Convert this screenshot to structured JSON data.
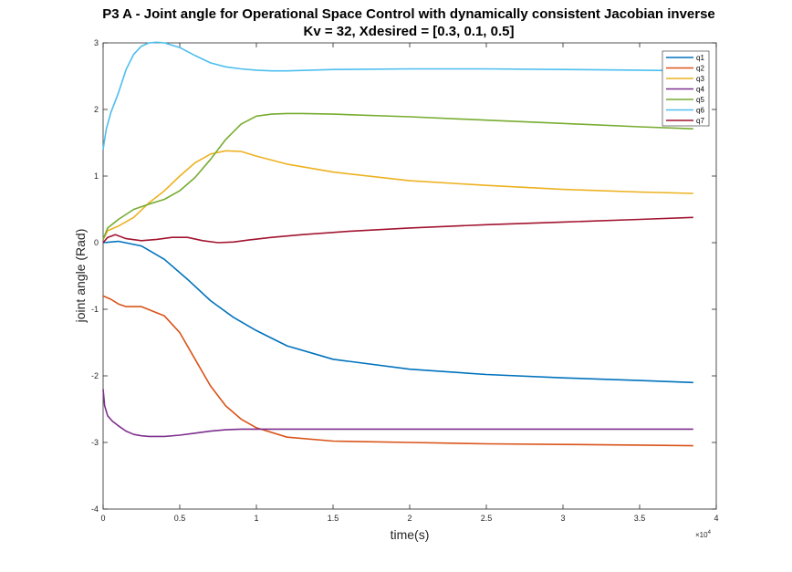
{
  "chart_data": {
    "type": "line",
    "title": "P3 A - Joint angle for Operational Space Control with dynamically consistent Jacobian inverse",
    "subtitle": "Kv = 32, Xdesired = [0.3, 0.1, 0.5]",
    "xlabel": "time(s)",
    "ylabel": "joint angle (Rad)",
    "xlim": [
      0,
      40000
    ],
    "ylim": [
      -4,
      3
    ],
    "x_multiplier_label": "×10",
    "x_multiplier_exp": "4",
    "xticks": [
      0,
      5000,
      10000,
      15000,
      20000,
      25000,
      30000,
      35000,
      40000
    ],
    "xtick_labels": [
      "0",
      "0.5",
      "1",
      "1.5",
      "2",
      "2.5",
      "3",
      "3.5",
      "4"
    ],
    "yticks": [
      -4,
      -3,
      -2,
      -1,
      0,
      1,
      2,
      3
    ],
    "ytick_labels": [
      "-4",
      "-3",
      "-2",
      "-1",
      "0",
      "1",
      "2",
      "3"
    ],
    "grid": false,
    "legend_position": "top-right",
    "colors": [
      "#0072BD",
      "#D95319",
      "#EDB120",
      "#7E2F8E",
      "#77AC30",
      "#4DBEEE",
      "#A2142F"
    ],
    "series": [
      {
        "name": "q1",
        "x": [
          0,
          1000,
          2500,
          4000,
          5500,
          7000,
          8500,
          10000,
          12000,
          15000,
          20000,
          25000,
          30000,
          35000,
          38500
        ],
        "y": [
          0.0,
          0.02,
          -0.05,
          -0.25,
          -0.55,
          -0.87,
          -1.12,
          -1.32,
          -1.55,
          -1.75,
          -1.9,
          -1.98,
          -2.03,
          -2.07,
          -2.1
        ]
      },
      {
        "name": "q2",
        "x": [
          0,
          500,
          1000,
          1500,
          2500,
          4000,
          5000,
          6000,
          7000,
          8000,
          9000,
          10000,
          12000,
          15000,
          20000,
          25000,
          30000,
          35000,
          38500
        ],
        "y": [
          -0.8,
          -0.85,
          -0.92,
          -0.96,
          -0.96,
          -1.1,
          -1.35,
          -1.75,
          -2.15,
          -2.45,
          -2.65,
          -2.78,
          -2.92,
          -2.98,
          -3.0,
          -3.02,
          -3.03,
          -3.04,
          -3.05
        ]
      },
      {
        "name": "q3",
        "x": [
          0,
          300,
          1000,
          2000,
          3000,
          4000,
          5000,
          6000,
          7000,
          8000,
          9000,
          10000,
          12000,
          15000,
          20000,
          25000,
          30000,
          35000,
          38500
        ],
        "y": [
          0.05,
          0.18,
          0.25,
          0.38,
          0.6,
          0.78,
          1.0,
          1.2,
          1.33,
          1.38,
          1.37,
          1.3,
          1.18,
          1.06,
          0.93,
          0.86,
          0.8,
          0.76,
          0.74
        ]
      },
      {
        "name": "q4",
        "x": [
          0,
          100,
          300,
          600,
          1000,
          1500,
          2000,
          2500,
          3000,
          4000,
          5000,
          6000,
          7000,
          8000,
          9000,
          10000,
          12000,
          15000,
          20000,
          25000,
          30000,
          35000,
          38500
        ],
        "y": [
          -2.2,
          -2.45,
          -2.6,
          -2.68,
          -2.75,
          -2.83,
          -2.88,
          -2.9,
          -2.91,
          -2.91,
          -2.89,
          -2.86,
          -2.83,
          -2.81,
          -2.8,
          -2.8,
          -2.8,
          -2.8,
          -2.8,
          -2.8,
          -2.8,
          -2.8,
          -2.8
        ]
      },
      {
        "name": "q5",
        "x": [
          0,
          300,
          1000,
          2000,
          3000,
          4000,
          5000,
          6000,
          7000,
          8000,
          9000,
          10000,
          11000,
          12000,
          13000,
          15000,
          20000,
          25000,
          30000,
          35000,
          38500
        ],
        "y": [
          0.05,
          0.22,
          0.35,
          0.5,
          0.58,
          0.65,
          0.78,
          0.98,
          1.25,
          1.55,
          1.78,
          1.9,
          1.93,
          1.94,
          1.94,
          1.93,
          1.89,
          1.84,
          1.79,
          1.74,
          1.71
        ]
      },
      {
        "name": "q6",
        "x": [
          0,
          200,
          500,
          1000,
          1500,
          2000,
          2500,
          3000,
          3500,
          4000,
          5000,
          6000,
          7000,
          8000,
          9000,
          10000,
          11000,
          12000,
          15000,
          20000,
          25000,
          30000,
          35000,
          38500
        ],
        "y": [
          1.4,
          1.7,
          1.95,
          2.25,
          2.6,
          2.83,
          2.95,
          3.0,
          3.01,
          3.0,
          2.93,
          2.81,
          2.7,
          2.64,
          2.61,
          2.59,
          2.58,
          2.58,
          2.6,
          2.61,
          2.61,
          2.6,
          2.59,
          2.58
        ]
      },
      {
        "name": "q7",
        "x": [
          0,
          300,
          800,
          1500,
          2500,
          3500,
          4500,
          5500,
          6500,
          7500,
          8500,
          9500,
          11000,
          13000,
          16000,
          20000,
          25000,
          30000,
          35000,
          38500
        ],
        "y": [
          0.0,
          0.08,
          0.12,
          0.06,
          0.03,
          0.05,
          0.08,
          0.08,
          0.03,
          0.0,
          0.01,
          0.04,
          0.08,
          0.12,
          0.17,
          0.22,
          0.27,
          0.31,
          0.35,
          0.38
        ]
      }
    ]
  }
}
